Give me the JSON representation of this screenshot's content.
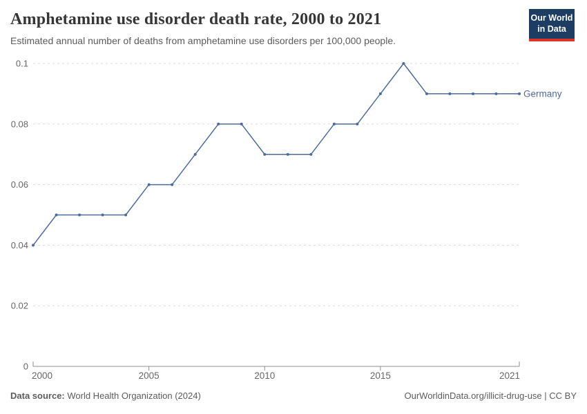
{
  "header": {
    "title": "Amphetamine use disorder death rate, 2000 to 2021",
    "subtitle": "Estimated annual number of deaths from amphetamine use disorders per 100,000 people."
  },
  "logo": {
    "line1": "Our World",
    "line2": "in Data",
    "bg_color": "#1d3d63",
    "accent_color": "#dc352c"
  },
  "chart_data": {
    "type": "line",
    "title": "Amphetamine use disorder death rate, 2000 to 2021",
    "xlabel": "",
    "ylabel": "",
    "x": [
      2000,
      2001,
      2002,
      2003,
      2004,
      2005,
      2006,
      2007,
      2008,
      2009,
      2010,
      2011,
      2012,
      2013,
      2014,
      2015,
      2016,
      2017,
      2018,
      2019,
      2020,
      2021
    ],
    "series": [
      {
        "name": "Germany",
        "color": "#4c6a9c",
        "values": [
          0.04,
          0.05,
          0.05,
          0.05,
          0.05,
          0.06,
          0.06,
          0.07,
          0.08,
          0.08,
          0.07,
          0.07,
          0.07,
          0.08,
          0.08,
          0.09,
          0.1,
          0.09,
          0.09,
          0.09,
          0.09,
          0.09
        ]
      }
    ],
    "ylim": [
      0,
      0.1
    ],
    "yticks": [
      0,
      0.02,
      0.04,
      0.06,
      0.08,
      0.1
    ],
    "xticks": [
      2000,
      2005,
      2010,
      2015,
      2021
    ],
    "grid": "horizontal-dashed",
    "legend_position": "end-of-line-label"
  },
  "footer": {
    "data_source_label": "Data source:",
    "data_source_value": " World Health Organization (2024)",
    "credit": "OurWorldinData.org/illicit-drug-use | CC BY"
  },
  "colors": {
    "line": "#4c6a9c",
    "grid": "#d9d9d9",
    "axis": "#8f8f8f",
    "tick_label": "#666666",
    "title": "#363636",
    "subtitle": "#5b5b5b",
    "footer": "#5b5b5b"
  }
}
